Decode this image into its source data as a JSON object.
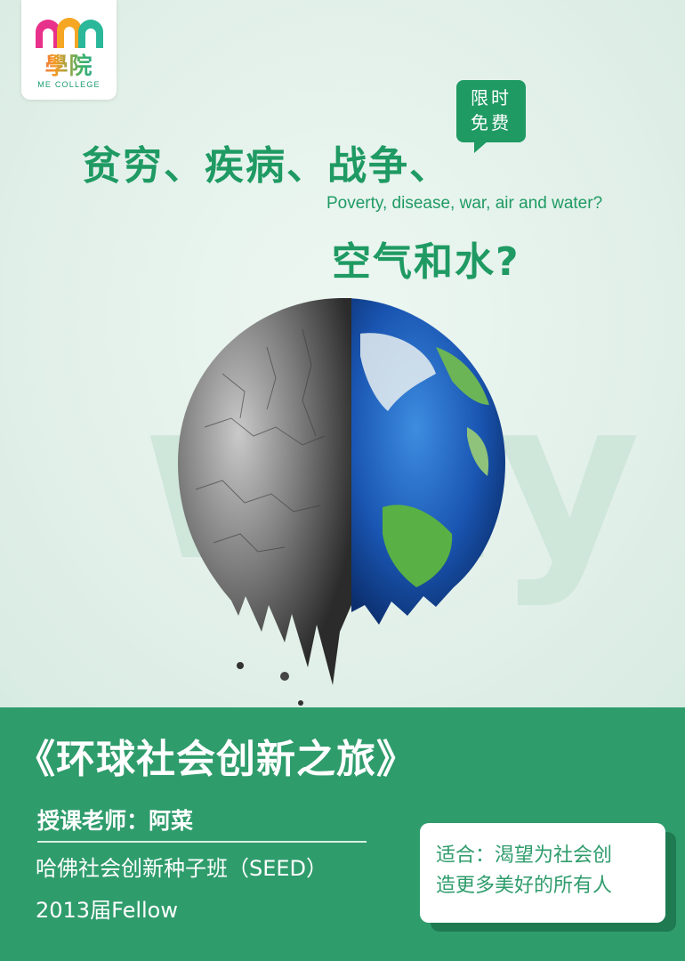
{
  "logo": {
    "name_cn": "學院",
    "name_en": "ME COLLEGE",
    "colors": [
      "#e8318b",
      "#f5a623",
      "#2bb89a"
    ]
  },
  "promo_badge": {
    "line1": "限时",
    "line2": "免费"
  },
  "headline": {
    "line1": "贫穷、疾病、战争、",
    "line_en": "Poverty, disease, war, air and water?",
    "line2": "空气和水?"
  },
  "background_text": "why",
  "course": {
    "title": "《环球社会创新之旅》",
    "teacher": "授课老师：阿菜",
    "credential_line1": "哈佛社会创新种子班（SEED）",
    "credential_line2": "2013届Fellow"
  },
  "audience": {
    "line1": "适合：渴望为社会创",
    "line2": "造更多美好的所有人"
  },
  "colors": {
    "brand_green": "#2f9c6c",
    "headline_green": "#1f9a63",
    "background": "#e3f1ea"
  }
}
